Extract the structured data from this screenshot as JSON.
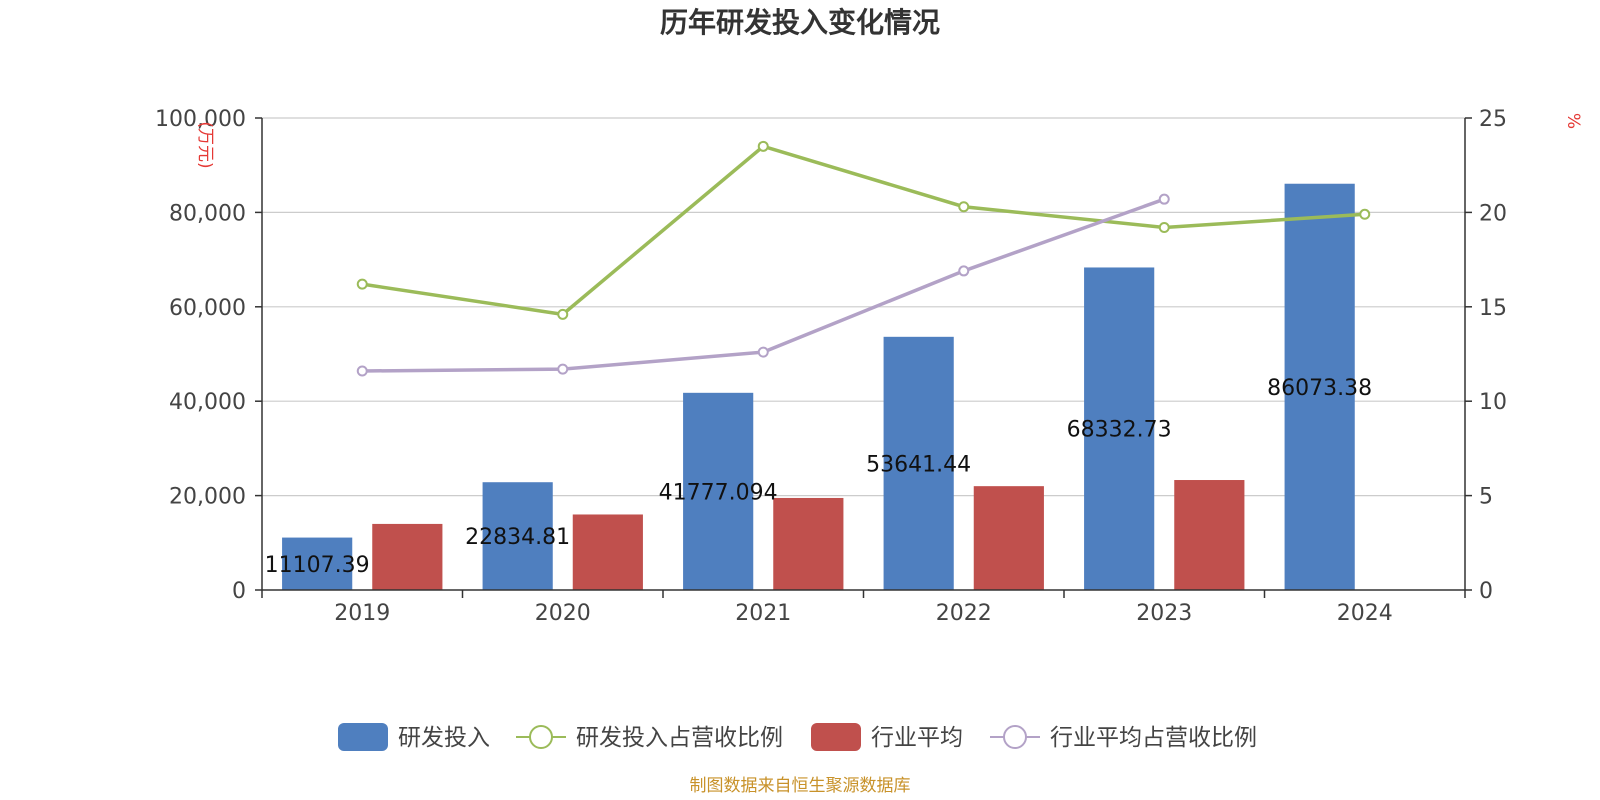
{
  "chart_data": {
    "type": "bar",
    "title": "历年研发投入变化情况",
    "categories": [
      "2019",
      "2020",
      "2021",
      "2022",
      "2023",
      "2024"
    ],
    "y_left": {
      "unit": "(万元)",
      "ylim": [
        0,
        100000
      ],
      "ticks": [
        0,
        20000,
        40000,
        60000,
        80000,
        100000
      ],
      "tick_labels": [
        "0",
        "20,000",
        "40,000",
        "60,000",
        "80,000",
        "100,000"
      ]
    },
    "y_right": {
      "unit": "%",
      "ylim": [
        0,
        25
      ],
      "ticks": [
        0,
        5,
        10,
        15,
        20,
        25
      ],
      "tick_labels": [
        "0",
        "5",
        "10",
        "15",
        "20",
        "25"
      ]
    },
    "grid": true,
    "legend_position": "bottom-center",
    "series": [
      {
        "name": "研发投入",
        "kind": "bar",
        "axis": "left",
        "color": "#4f7fbf",
        "values": [
          11107.39,
          22834.81,
          41777.094,
          53641.44,
          68332.73,
          86073.38
        ],
        "labels": [
          "11107.39",
          "22834.81",
          "41777.094",
          "53641.44",
          "68332.73",
          "86073.38"
        ]
      },
      {
        "name": "研发投入占营收比例",
        "kind": "line",
        "axis": "right",
        "color": "#9bbb59",
        "values": [
          16.2,
          14.6,
          23.5,
          20.3,
          19.2,
          19.9
        ]
      },
      {
        "name": "行业平均",
        "kind": "bar",
        "axis": "left",
        "color": "#c0504d",
        "values": [
          14000,
          16000,
          19500,
          22000,
          23300,
          null
        ]
      },
      {
        "name": "行业平均占营收比例",
        "kind": "line",
        "axis": "right",
        "color": "#b3a2c7",
        "values": [
          11.6,
          11.7,
          12.6,
          16.9,
          20.7,
          null
        ]
      }
    ],
    "source_note": "制图数据来自恒生聚源数据库"
  }
}
